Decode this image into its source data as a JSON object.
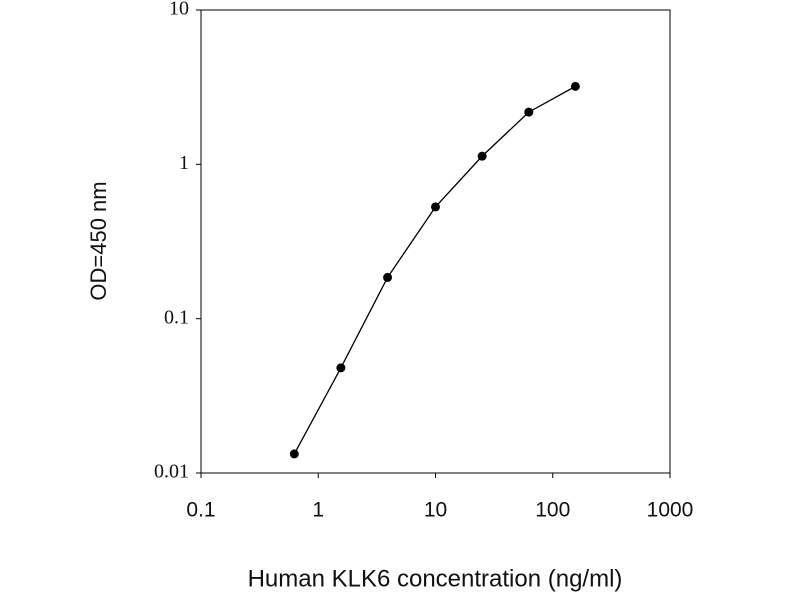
{
  "chart_data": {
    "type": "line",
    "x": [
      0.625,
      1.56,
      3.9,
      10,
      25,
      62.5,
      156
    ],
    "values": [
      0.0133,
      0.048,
      0.185,
      0.53,
      1.13,
      2.18,
      3.2
    ],
    "color": "#000000",
    "marker": "circle",
    "xlim": [
      0.1,
      1000
    ],
    "ylim": [
      0.01,
      10
    ],
    "xticks": [
      0.1,
      1,
      10,
      100,
      1000
    ],
    "yticks": [
      0.01,
      0.1,
      1,
      10
    ],
    "xscale": "log",
    "yscale": "log",
    "grid": false,
    "xlabel": "Human KLK6 concentration (ng/ml)",
    "ylabel": "OD=450 nm"
  }
}
